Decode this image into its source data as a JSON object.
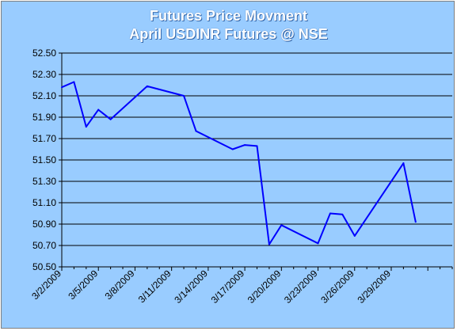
{
  "chart_data": {
    "type": "line",
    "title": "Futures Price Movment",
    "subtitle": "April USDINR Futures @ NSE",
    "xlabel": "",
    "ylabel": "",
    "ylim": [
      50.5,
      52.5
    ],
    "y_ticks": [
      "50.50",
      "50.70",
      "50.90",
      "51.10",
      "51.30",
      "51.50",
      "51.70",
      "51.90",
      "52.10",
      "52.30",
      "52.50"
    ],
    "x_tick_labels": [
      "3/2/2009",
      "3/5/2009",
      "3/8/2009",
      "3/11/2009",
      "3/14/2009",
      "3/17/2009",
      "3/20/2009",
      "3/23/2009",
      "3/26/2009",
      "3/29/2009"
    ],
    "x_range_days": [
      0,
      32
    ],
    "grid": "horizontal",
    "line_color": "#0000ff",
    "series": [
      {
        "x": [
          0,
          1,
          2,
          3,
          4,
          7,
          10,
          11,
          14,
          15,
          16,
          17,
          18,
          21,
          22,
          23,
          24,
          28,
          29
        ],
        "values": [
          52.18,
          52.23,
          51.81,
          51.97,
          51.88,
          52.19,
          52.1,
          51.77,
          51.6,
          51.64,
          51.63,
          50.71,
          50.89,
          50.72,
          51.0,
          50.99,
          50.79,
          51.47,
          50.92
        ]
      }
    ]
  }
}
